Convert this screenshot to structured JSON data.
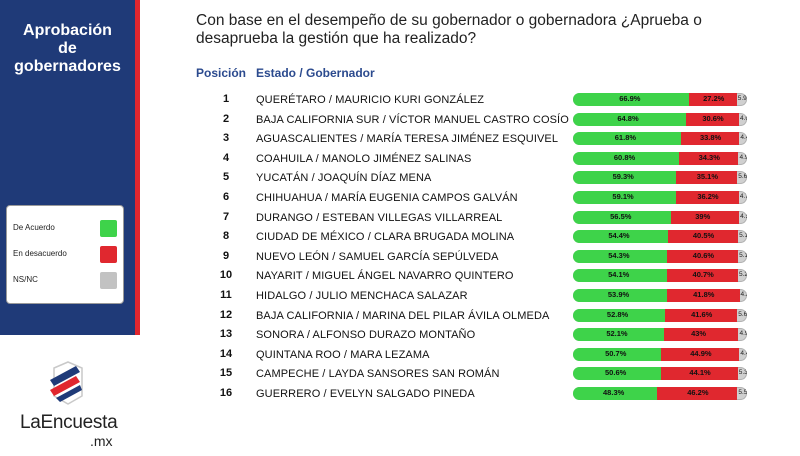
{
  "sidebar": {
    "title_line1": "Aprobación",
    "title_line2": "de",
    "title_line3": "gobernadores",
    "legend": [
      {
        "label": "De Acuerdo",
        "color": "#3ed34a"
      },
      {
        "label": "En desacuerdo",
        "color": "#e0282f"
      },
      {
        "label": "NS/NC",
        "color": "#c2c2c2"
      }
    ]
  },
  "logo": {
    "text": "LaEncuesta",
    "sub": ".mx"
  },
  "question": "Con base en el desempeño de su gobernador o gobernadora ¿Aprueba o desaprueba la gestión que ha realizado?",
  "headers": {
    "position": "Posición",
    "state": "Estado / Gobernador"
  },
  "chart_data": {
    "type": "bar",
    "stacked": true,
    "categories": [
      "QUERÉTARO / MAURICIO KURI GONZÁLEZ",
      "BAJA CALIFORNIA SUR / VÍCTOR MANUEL CASTRO COSÍO",
      "AGUASCALIENTES / MARÍA TERESA JIMÉNEZ ESQUIVEL",
      "COAHUILA / MANOLO JIMÉNEZ SALINAS",
      "YUCATÁN / JOAQUÍN DÍAZ MENA",
      "CHIHUAHUA / MARÍA EUGENIA CAMPOS GALVÁN",
      "DURANGO / ESTEBAN VILLEGAS VILLARREAL",
      "CIUDAD DE MÉXICO / CLARA BRUGADA MOLINA",
      "NUEVO LEÓN / SAMUEL GARCÍA SEPÚLVEDA",
      "NAYARIT / MIGUEL ÁNGEL NAVARRO QUINTERO",
      "HIDALGO / JULIO MENCHACA SALAZAR",
      "BAJA CALIFORNIA / MARINA DEL PILAR ÁVILA OLMEDA",
      "SONORA / ALFONSO DURAZO MONTAÑO",
      "QUINTANA ROO / MARA LEZAMA",
      "CAMPECHE / LAYDA SANSORES SAN ROMÁN",
      "GUERRERO / EVELYN SALGADO PINEDA"
    ],
    "positions": [
      "1",
      "2",
      "3",
      "4",
      "5",
      "6",
      "7",
      "8",
      "9",
      "10",
      "11",
      "12",
      "13",
      "14",
      "15",
      "16"
    ],
    "series": [
      {
        "name": "De Acuerdo",
        "color": "#3ed34a",
        "values": [
          66.9,
          64.8,
          61.8,
          60.8,
          59.3,
          59.1,
          56.5,
          54.4,
          54.3,
          54.1,
          53.9,
          52.8,
          52.1,
          50.7,
          50.6,
          48.3
        ],
        "labels": [
          "66.9%",
          "64.8%",
          "61.8%",
          "60.8%",
          "59.3%",
          "59.1%",
          "56.5%",
          "54.4%",
          "54.3%",
          "54.1%",
          "53.9%",
          "52.8%",
          "52.1%",
          "50.7%",
          "50.6%",
          "48.3%"
        ]
      },
      {
        "name": "En desacuerdo",
        "color": "#e0282f",
        "values": [
          27.2,
          30.6,
          33.8,
          34.3,
          35.1,
          36.2,
          39,
          40.5,
          40.6,
          40.7,
          41.8,
          41.6,
          43,
          44.9,
          44.1,
          46.2
        ],
        "labels": [
          "27.2%",
          "30.6%",
          "33.8%",
          "34.3%",
          "35.1%",
          "36.2%",
          "39%",
          "40.5%",
          "40.6%",
          "40.7%",
          "41.8%",
          "41.6%",
          "43%",
          "44.9%",
          "44.1%",
          "46.2%"
        ]
      },
      {
        "name": "NS/NC",
        "color": "#c2c2c2",
        "values": [
          5.9,
          4.6,
          4.4,
          4.9,
          5.6,
          4.7,
          4.5,
          5.1,
          5.1,
          5.2,
          4.3,
          5.6,
          4.9,
          4.4,
          5.3,
          5.5
        ],
        "labels": [
          "5.9%",
          "4.6%",
          "4.4%",
          "4.9%",
          "5.6%",
          "4.7%",
          "4.5%",
          "5.1%",
          "5.1%",
          "5.2%",
          "4.3%",
          "5.6%",
          "4.9%",
          "4.4%",
          "5.3%",
          "5.5%"
        ]
      }
    ],
    "xlim": [
      0,
      100
    ]
  }
}
